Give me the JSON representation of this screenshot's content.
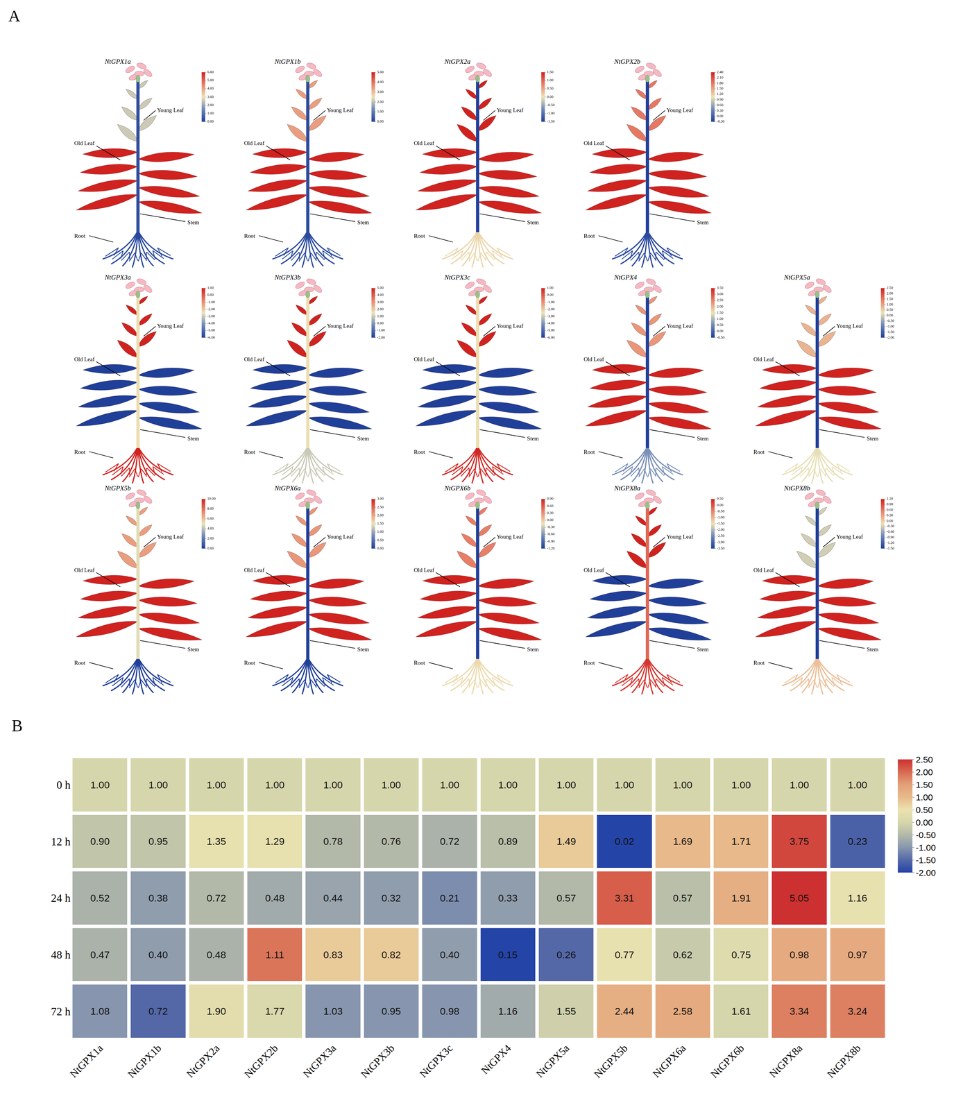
{
  "chart_data": [
    {
      "type": "tissue_map",
      "panel": "A",
      "tissues": [
        "Young Leaf",
        "Old Leaf",
        "Stem",
        "Root"
      ],
      "genes": [
        {
          "name": "NtGPX1a",
          "values": [
            2.6,
            6,
            0.3,
            0.2
          ],
          "clim": [
            0,
            6
          ],
          "cticks": [
            {
              "value": 6,
              "label": "6.00"
            },
            {
              "value": 5,
              "label": "5.00"
            },
            {
              "value": 4,
              "label": "4.00"
            },
            {
              "value": 3,
              "label": "3.00"
            },
            {
              "value": 2,
              "label": "2.00"
            },
            {
              "value": 1,
              "label": "1.00"
            },
            {
              "value": 0,
              "label": "0.00"
            }
          ]
        },
        {
          "name": "NtGPX1b",
          "values": [
            3.4,
            5,
            0.2,
            0.2
          ],
          "clim": [
            0,
            5
          ],
          "cticks": [
            {
              "value": 5,
              "label": "5.00"
            },
            {
              "value": 4,
              "label": "4.00"
            },
            {
              "value": 3,
              "label": "3.00"
            },
            {
              "value": 2,
              "label": "2.00"
            },
            {
              "value": 1,
              "label": "1.00"
            },
            {
              "value": 0,
              "label": "0.00"
            }
          ]
        },
        {
          "name": "NtGPX2a",
          "values": [
            1.5,
            1.5,
            -1.5,
            0.1
          ],
          "clim": [
            -1.5,
            1.5
          ],
          "cticks": [
            {
              "value": 1.5,
              "label": "1.50"
            },
            {
              "value": 1,
              "label": "1.00"
            },
            {
              "value": 0.5,
              "label": "0.50"
            },
            {
              "value": 0,
              "label": "0.00"
            },
            {
              "value": -0.5,
              "label": "-0.50"
            },
            {
              "value": -1,
              "label": "-1.00"
            },
            {
              "value": -1.5,
              "label": "-1.50"
            }
          ]
        },
        {
          "name": "NtGPX2b",
          "values": [
            1.8,
            2.4,
            -0.3,
            -0.2
          ],
          "clim": [
            -0.3,
            2.4
          ],
          "cticks": [
            {
              "value": 2.4,
              "label": "2.40"
            },
            {
              "value": 2.1,
              "label": "2.10"
            },
            {
              "value": 1.8,
              "label": "1.80"
            },
            {
              "value": 1.5,
              "label": "1.50"
            },
            {
              "value": 1.2,
              "label": "1.20"
            },
            {
              "value": 0.9,
              "label": "0.90"
            },
            {
              "value": 0.6,
              "label": "0.60"
            },
            {
              "value": 0.3,
              "label": "0.30"
            },
            {
              "value": 0,
              "label": "0.00"
            },
            {
              "value": -0.3,
              "label": "-0.30"
            }
          ]
        },
        {
          "name": "NtGPX3a",
          "values": [
            1,
            -6,
            -2.4,
            1
          ],
          "clim": [
            -6,
            1
          ],
          "cticks": [
            {
              "value": 1,
              "label": "1.00"
            },
            {
              "value": 0,
              "label": "0.00"
            },
            {
              "value": -1,
              "label": "-1.00"
            },
            {
              "value": -2,
              "label": "-2.00"
            },
            {
              "value": -3,
              "label": "-3.00"
            },
            {
              "value": -4,
              "label": "-4.00"
            },
            {
              "value": -5,
              "label": "-5.00"
            },
            {
              "value": -6,
              "label": "-6.00"
            }
          ]
        },
        {
          "name": "NtGPX3b",
          "values": [
            5,
            -2,
            1.6,
            1.0
          ],
          "clim": [
            -2,
            5
          ],
          "cticks": [
            {
              "value": 5,
              "label": "5.00"
            },
            {
              "value": 4,
              "label": "4.00"
            },
            {
              "value": 3,
              "label": "3.00"
            },
            {
              "value": 2,
              "label": "2.00"
            },
            {
              "value": 1,
              "label": "1.00"
            },
            {
              "value": 0,
              "label": "0.00"
            },
            {
              "value": -1,
              "label": "-1.00"
            },
            {
              "value": -2,
              "label": "-2.00"
            }
          ]
        },
        {
          "name": "NtGPX3c",
          "values": [
            1,
            -6,
            -2.4,
            0.9
          ],
          "clim": [
            -6,
            1
          ],
          "cticks": [
            {
              "value": 1,
              "label": "1.00"
            },
            {
              "value": 0,
              "label": "0.00"
            },
            {
              "value": -1,
              "label": "-1.00"
            },
            {
              "value": -2,
              "label": "-2.00"
            },
            {
              "value": -3,
              "label": "-3.00"
            },
            {
              "value": -4,
              "label": "-4.00"
            },
            {
              "value": -5,
              "label": "-5.00"
            },
            {
              "value": -6,
              "label": "-6.00"
            }
          ]
        },
        {
          "name": "NtGPX4",
          "values": [
            2.3,
            3.5,
            -0.5,
            0.6
          ],
          "clim": [
            -0.5,
            3.5
          ],
          "cticks": [
            {
              "value": 3.5,
              "label": "3.50"
            },
            {
              "value": 3,
              "label": "3.00"
            },
            {
              "value": 2.5,
              "label": "2.50"
            },
            {
              "value": 2,
              "label": "2.00"
            },
            {
              "value": 1.5,
              "label": "1.50"
            },
            {
              "value": 1,
              "label": "1.00"
            },
            {
              "value": 0.5,
              "label": "0.50"
            },
            {
              "value": 0,
              "label": "0.00"
            },
            {
              "value": -0.5,
              "label": "-0.50"
            }
          ]
        },
        {
          "name": "NtGPX5a",
          "values": [
            0.8,
            2.5,
            -2,
            0.2
          ],
          "clim": [
            -2,
            2.5
          ],
          "cticks": [
            {
              "value": 2.5,
              "label": "2.50"
            },
            {
              "value": 2,
              "label": "2.00"
            },
            {
              "value": 1.5,
              "label": "1.50"
            },
            {
              "value": 1,
              "label": "1.00"
            },
            {
              "value": 0.5,
              "label": "0.50"
            },
            {
              "value": 0,
              "label": "0.00"
            },
            {
              "value": -0.5,
              "label": "-0.50"
            },
            {
              "value": -1,
              "label": "-1.00"
            },
            {
              "value": -1.5,
              "label": "-1.50"
            },
            {
              "value": -2,
              "label": "-2.00"
            }
          ]
        },
        {
          "name": "NtGPX5b",
          "values": [
            6.8,
            10,
            4.8,
            0
          ],
          "clim": [
            0,
            10
          ],
          "cticks": [
            {
              "value": 10,
              "label": "10.00"
            },
            {
              "value": 8,
              "label": "8.00"
            },
            {
              "value": 6,
              "label": "6.00"
            },
            {
              "value": 4,
              "label": "4.00"
            },
            {
              "value": 2,
              "label": "2.00"
            },
            {
              "value": 0,
              "label": "0.00"
            }
          ]
        },
        {
          "name": "NtGPX6a",
          "values": [
            2.1,
            3,
            0,
            0
          ],
          "clim": [
            0,
            3
          ],
          "cticks": [
            {
              "value": 3,
              "label": "3.00"
            },
            {
              "value": 2.5,
              "label": "2.50"
            },
            {
              "value": 2,
              "label": "2.00"
            },
            {
              "value": 1.5,
              "label": "1.50"
            },
            {
              "value": 1,
              "label": "1.00"
            },
            {
              "value": 0.5,
              "label": "0.50"
            },
            {
              "value": 0,
              "label": "0.00"
            }
          ]
        },
        {
          "name": "NtGPX6b",
          "values": [
            0.4,
            0.9,
            -1.2,
            -0.1
          ],
          "clim": [
            -1.2,
            0.9
          ],
          "cticks": [
            {
              "value": 0.9,
              "label": "0.90"
            },
            {
              "value": 0.6,
              "label": "0.60"
            },
            {
              "value": 0.3,
              "label": "0.30"
            },
            {
              "value": 0,
              "label": "0.00"
            },
            {
              "value": -0.3,
              "label": "-0.30"
            },
            {
              "value": -0.6,
              "label": "-0.60"
            },
            {
              "value": -0.9,
              "label": "-0.90"
            },
            {
              "value": -1.2,
              "label": "-1.20"
            }
          ]
        },
        {
          "name": "NtGPX8a",
          "values": [
            0.5,
            -3.5,
            -0.2,
            0.3
          ],
          "clim": [
            -3.5,
            0.5
          ],
          "cticks": [
            {
              "value": 0.5,
              "label": "0.50"
            },
            {
              "value": 0,
              "label": "0.00"
            },
            {
              "value": -0.5,
              "label": "-0.50"
            },
            {
              "value": -1,
              "label": "-1.00"
            },
            {
              "value": -1.5,
              "label": "-1.50"
            },
            {
              "value": -2,
              "label": "-2.00"
            },
            {
              "value": -2.5,
              "label": "-2.50"
            },
            {
              "value": -3,
              "label": "-3.00"
            },
            {
              "value": -3.5,
              "label": "-3.50"
            }
          ]
        },
        {
          "name": "NtGPX8b",
          "values": [
            -0.3,
            1.2,
            -1.5,
            0.1
          ],
          "clim": [
            -1.5,
            1.2
          ],
          "cticks": [
            {
              "value": 1.2,
              "label": "1.20"
            },
            {
              "value": 0.9,
              "label": "0.90"
            },
            {
              "value": 0.6,
              "label": "0.60"
            },
            {
              "value": 0.3,
              "label": "0.30"
            },
            {
              "value": 0,
              "label": "0.00"
            },
            {
              "value": -0.3,
              "label": "-0.30"
            },
            {
              "value": -0.6,
              "label": "-0.60"
            },
            {
              "value": -0.9,
              "label": "-0.90"
            },
            {
              "value": -1.2,
              "label": "-1.20"
            },
            {
              "value": -1.5,
              "label": "-1.50"
            }
          ]
        }
      ]
    },
    {
      "type": "heatmap",
      "panel": "B",
      "data_labels": true,
      "x": [
        "NtGPX1a",
        "NtGPX1b",
        "NtGPX2a",
        "NtGPX2b",
        "NtGPX3a",
        "NtGPX3b",
        "NtGPX3c",
        "NtGPX4",
        "NtGPX5a",
        "NtGPX5b",
        "NtGPX6a",
        "NtGPX6b",
        "NtGPX8a",
        "NtGPX8b"
      ],
      "y": [
        "0 h",
        "12 h",
        "24 h",
        "48 h",
        "72 h"
      ],
      "z": [
        [
          0,
          0,
          0,
          0,
          0,
          0,
          0,
          0,
          0,
          0,
          0,
          0,
          0,
          0
        ],
        [
          -0.3,
          -0.3,
          0.4,
          0.4,
          -0.5,
          -0.5,
          -0.6,
          -0.4,
          0.8,
          -2,
          1.0,
          1.0,
          2.3,
          -1.6
        ],
        [
          -0.6,
          -0.9,
          -0.5,
          -0.7,
          -0.8,
          -0.9,
          -1.1,
          -0.9,
          -0.5,
          2.1,
          -0.4,
          1.2,
          2.5,
          0.4
        ],
        [
          -0.6,
          -0.9,
          -0.6,
          1.9,
          0.8,
          0.8,
          -0.9,
          -2,
          -1.5,
          0.4,
          -0.2,
          0.2,
          1.3,
          1.3
        ],
        [
          -1.0,
          -1.5,
          0.3,
          0.1,
          -1.0,
          -1.0,
          -1.0,
          -0.7,
          -0.1,
          1.2,
          1.3,
          0.0,
          1.8,
          1.8
        ]
      ],
      "values": [
        [
          1,
          1,
          1,
          1,
          1,
          1,
          1,
          1,
          1,
          1,
          1,
          1,
          1,
          1
        ],
        [
          0.9,
          0.95,
          1.35,
          1.29,
          0.78,
          0.76,
          0.72,
          0.89,
          1.49,
          0.02,
          1.69,
          1.71,
          3.75,
          0.23
        ],
        [
          0.52,
          0.38,
          0.72,
          0.48,
          0.44,
          0.32,
          0.21,
          0.33,
          0.57,
          3.31,
          0.57,
          1.91,
          5.05,
          1.16
        ],
        [
          0.47,
          0.4,
          0.48,
          1.11,
          0.83,
          0.82,
          0.4,
          0.15,
          0.26,
          0.77,
          0.62,
          0.75,
          0.98,
          0.97
        ],
        [
          1.08,
          0.72,
          1.9,
          1.77,
          1.03,
          0.95,
          0.98,
          1.16,
          1.55,
          2.44,
          2.58,
          1.61,
          3.34,
          3.24
        ]
      ],
      "value_labels": [
        [
          "1.00",
          "1.00",
          "1.00",
          "1.00",
          "1.00",
          "1.00",
          "1.00",
          "1.00",
          "1.00",
          "1.00",
          "1.00",
          "1.00",
          "1.00",
          "1.00"
        ],
        [
          "0.90",
          "0.95",
          "1.35",
          "1.29",
          "0.78",
          "0.76",
          "0.72",
          "0.89",
          "1.49",
          "0.02",
          "1.69",
          "1.71",
          "3.75",
          "0.23"
        ],
        [
          "0.52",
          "0.38",
          "0.72",
          "0.48",
          "0.44",
          "0.32",
          "0.21",
          "0.33",
          "0.57",
          "3.31",
          "0.57",
          "1.91",
          "5.05",
          "1.16"
        ],
        [
          "0.47",
          "0.40",
          "0.48",
          "1.11",
          "0.83",
          "0.82",
          "0.40",
          "0.15",
          "0.26",
          "0.77",
          "0.62",
          "0.75",
          "0.98",
          "0.97"
        ],
        [
          "1.08",
          "0.72",
          "1.90",
          "1.77",
          "1.03",
          "0.95",
          "0.98",
          "1.16",
          "1.55",
          "2.44",
          "2.58",
          "1.61",
          "3.34",
          "3.24"
        ]
      ],
      "zlim": [
        -2,
        2.5
      ],
      "zticks": [
        {
          "value": -2,
          "label": "-2.00"
        },
        {
          "value": -1.5,
          "label": "-1.50"
        },
        {
          "value": -1,
          "label": "-1.00"
        },
        {
          "value": -0.5,
          "label": "-0.50"
        },
        {
          "value": 0,
          "label": "0.00"
        },
        {
          "value": 0.5,
          "label": "0.50"
        },
        {
          "value": 1,
          "label": "1.00"
        },
        {
          "value": 1.5,
          "label": "1.50"
        },
        {
          "value": 2,
          "label": "2.00"
        },
        {
          "value": 2.5,
          "label": "2.50"
        }
      ]
    }
  ]
}
